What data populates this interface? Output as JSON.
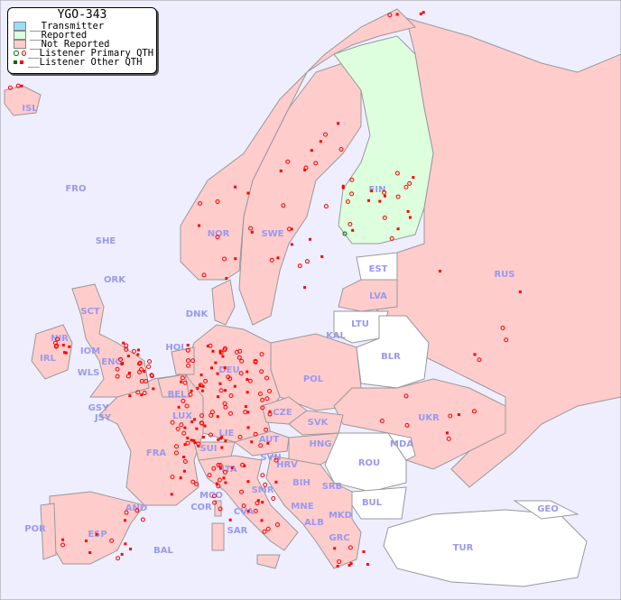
{
  "legend": {
    "title": "YGO-343",
    "items": [
      {
        "label": "__Transmitter",
        "color": "#99ddff"
      },
      {
        "label": "__Reported",
        "color": "#ddffdd"
      },
      {
        "label": "__Not Reported",
        "color": "#ffcccc"
      },
      {
        "label": "__Listener Primary QTH",
        "colors": [
          "#006600",
          "#ff0000"
        ]
      },
      {
        "label": "__Listener Other QTH",
        "colors": [
          "#006600",
          "#ff0000"
        ]
      }
    ]
  },
  "colors": {
    "sea": "#eeeeff",
    "not_reported": "#ffcccc",
    "reported": "#ddffdd",
    "no_data": "#ffffff",
    "marker": "#ff0000",
    "label": "#9999ee"
  },
  "countries": [
    "ISL",
    "FRO",
    "SHE",
    "ORK",
    "NOR",
    "SWE",
    "FIN",
    "EST",
    "LVA",
    "LTU",
    "KAL",
    "BLR",
    "RUS",
    "DNK",
    "HOL",
    "BEL",
    "LUX",
    "DEU",
    "POL",
    "CZE",
    "SVK",
    "UKR",
    "MDA",
    "ROU",
    "BUL",
    "TUR",
    "GEO",
    "HNG",
    "AUT",
    "SUI",
    "LIE",
    "FRA",
    "GSY",
    "JSY",
    "IRL",
    "NIR",
    "IOM",
    "WLS",
    "ENG",
    "SCT",
    "AND",
    "POR",
    "ESP",
    "BAL",
    "COR",
    "MCO",
    "ITA",
    "SAR",
    "SVN",
    "HRV",
    "BIH",
    "SRB",
    "MNE",
    "ALB",
    "MKD",
    "GRC",
    "CVA",
    "SMR"
  ]
}
